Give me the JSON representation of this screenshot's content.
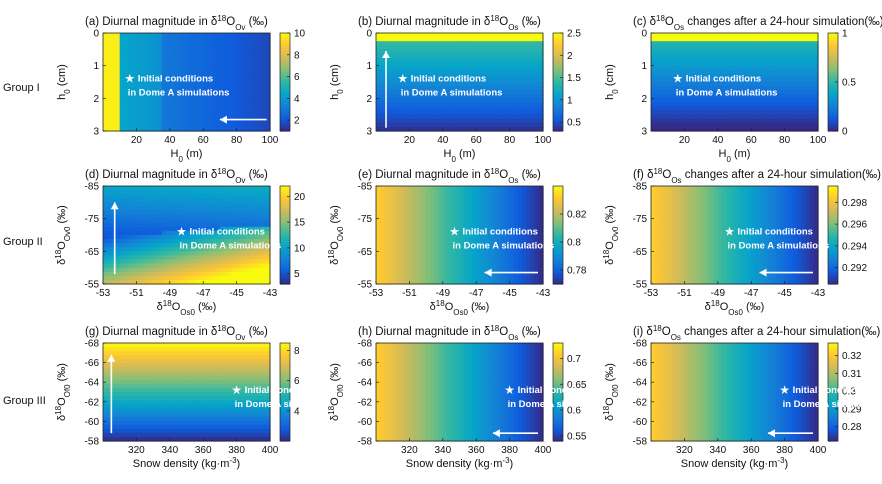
{
  "groups": [
    {
      "label": "Group I"
    },
    {
      "label": "Group II"
    },
    {
      "label": "Group III"
    }
  ],
  "annotation": {
    "line1": "Initial conditions",
    "line2": "in Dome A simulations"
  },
  "colors": {
    "parula": [
      "#352a87",
      "#0f5cdd",
      "#1481d6",
      "#06a4ca",
      "#2eb7a4",
      "#87bf77",
      "#d1bb59",
      "#fec832",
      "#f9fb0e"
    ],
    "arrow": "#ffffff",
    "star": "#ffffff"
  },
  "chart_data": [
    {
      "id": "a",
      "type": "heatmap",
      "title": "(a) Diurnal magnitude in δ18Ov (‰)",
      "xlabel": "H0 (m)",
      "ylabel": "h0 (cm)",
      "xlim": [
        0,
        100
      ],
      "ylim": [
        0,
        3
      ],
      "y_reversed": true,
      "xticks": [
        "20",
        "40",
        "60",
        "80",
        "100"
      ],
      "yticks": [
        "0",
        "1",
        "2",
        "3"
      ],
      "colorbar": {
        "range": [
          1,
          10
        ],
        "ticks": [
          "10",
          "8",
          "6",
          "4",
          "2"
        ]
      },
      "field": "a",
      "star": {
        "x": 16,
        "y": 1.4
      },
      "arrow": {
        "dir": "left",
        "from": [
          98,
          2.65
        ],
        "to": [
          70,
          2.65
        ]
      },
      "annotation": true
    },
    {
      "id": "b",
      "type": "heatmap",
      "title": "(b) Diurnal magnitude in δ18Os (‰)",
      "xlabel": "H0 (m)",
      "ylabel": "h0 (cm)",
      "xlim": [
        0,
        100
      ],
      "ylim": [
        0,
        3
      ],
      "y_reversed": true,
      "xticks": [
        "20",
        "40",
        "60",
        "80",
        "100"
      ],
      "yticks": [
        "0",
        "1",
        "2",
        "3"
      ],
      "colorbar": {
        "range": [
          0.3,
          2.5
        ],
        "ticks": [
          "2.5",
          "2",
          "1.5",
          "1",
          "0.5"
        ]
      },
      "field": "b",
      "star": {
        "x": 16,
        "y": 1.4
      },
      "arrow": {
        "dir": "up",
        "from": [
          6,
          2.9
        ],
        "to": [
          6,
          0.55
        ]
      },
      "annotation": true
    },
    {
      "id": "c",
      "type": "heatmap",
      "title": "(c) δ18Os changes after a 24-hour simulation(‰)",
      "xlabel": "H0 (m)",
      "ylabel": "h0 (cm)",
      "xlim": [
        0,
        100
      ],
      "ylim": [
        0,
        3
      ],
      "y_reversed": true,
      "xticks": [
        "20",
        "40",
        "60",
        "80",
        "100"
      ],
      "yticks": [
        "0",
        "1",
        "2",
        "3"
      ],
      "colorbar": {
        "range": [
          0,
          1
        ],
        "ticks": [
          "1",
          "0.5",
          "0"
        ]
      },
      "field": "c",
      "star": {
        "x": 16,
        "y": 1.4
      },
      "annotation": true
    },
    {
      "id": "d",
      "type": "heatmap",
      "title": "(d) Diurnal magnitude in δ18Ov (‰)",
      "xlabel": "δ18Os0 (‰)",
      "ylabel": "δ18Ov0 (‰)",
      "xlim": [
        -53,
        -43
      ],
      "ylim": [
        -85,
        -55
      ],
      "y_reversed": true,
      "xticks": [
        "-53",
        "-51",
        "-49",
        "-47",
        "-45",
        "-43"
      ],
      "yticks": [
        "-85",
        "-75",
        "-65",
        "-55"
      ],
      "colorbar": {
        "range": [
          3,
          22
        ],
        "ticks": [
          "20",
          "15",
          "10",
          "5"
        ]
      },
      "field": "d",
      "star": {
        "x": -48.3,
        "y": -71
      },
      "arrow": {
        "dir": "up",
        "from": [
          -52.3,
          -58
        ],
        "to": [
          -52.3,
          -80
        ]
      },
      "annotation": true
    },
    {
      "id": "e",
      "type": "heatmap",
      "title": "(e) Diurnal magnitude in δ18Os (‰)",
      "xlabel": "δ18Os0 (‰)",
      "ylabel": "δ18Ov0 (‰)",
      "xlim": [
        -53,
        -43
      ],
      "ylim": [
        -85,
        -55
      ],
      "y_reversed": true,
      "xticks": [
        "-53",
        "-51",
        "-49",
        "-47",
        "-45",
        "-43"
      ],
      "yticks": [
        "-85",
        "-75",
        "-65",
        "-55"
      ],
      "colorbar": {
        "range": [
          0.77,
          0.84
        ],
        "ticks": [
          "0.82",
          "0.8",
          "0.78"
        ]
      },
      "field": "horiz",
      "star": {
        "x": -48.3,
        "y": -71
      },
      "arrow": {
        "dir": "left",
        "from": [
          -43.3,
          -58.5
        ],
        "to": [
          -46.5,
          -58.5
        ]
      },
      "annotation": true
    },
    {
      "id": "f",
      "type": "heatmap",
      "title": "(f) δ18Os changes after a 24-hour simulation(‰)",
      "xlabel": "δ18Os0 (‰)",
      "ylabel": "δ18Ov0 (‰)",
      "xlim": [
        -53,
        -43
      ],
      "ylim": [
        -85,
        -55
      ],
      "y_reversed": true,
      "xticks": [
        "-53",
        "-51",
        "-49",
        "-47",
        "-45",
        "-43"
      ],
      "yticks": [
        "-85",
        "-75",
        "-65",
        "-55"
      ],
      "colorbar": {
        "range": [
          0.2905,
          0.2995
        ],
        "ticks": [
          "0.298",
          "0.296",
          "0.294",
          "0.292"
        ]
      },
      "field": "horiz",
      "star": {
        "x": -48.3,
        "y": -71
      },
      "arrow": {
        "dir": "left",
        "from": [
          -43.3,
          -58.5
        ],
        "to": [
          -46.5,
          -58.5
        ]
      },
      "annotation": true
    },
    {
      "id": "g",
      "type": "heatmap",
      "title": "(g) Diurnal magnitude in δ18Ov (‰)",
      "xlabel": "Snow density (kg·m-3)",
      "ylabel": "δ18Of0 (‰)",
      "xlim": [
        300,
        400
      ],
      "ylim": [
        -68,
        -58
      ],
      "y_reversed": true,
      "xticks": [
        "320",
        "340",
        "360",
        "380",
        "400"
      ],
      "yticks": [
        "-68",
        "-66",
        "-64",
        "-62",
        "-60",
        "-58"
      ],
      "colorbar": {
        "range": [
          2,
          8.5
        ],
        "ticks": [
          "8",
          "6",
          "4"
        ]
      },
      "field": "g",
      "star": {
        "x": 380,
        "y": -63.2
      },
      "arrow": {
        "dir": "up",
        "from": [
          305,
          -58.8
        ],
        "to": [
          305,
          -66.8
        ]
      },
      "annotation": true
    },
    {
      "id": "h",
      "type": "heatmap",
      "title": "(h) Diurnal magnitude in δ18Os (‰)",
      "xlabel": "Snow density (kg·m-3)",
      "ylabel": "δ18Of0 (‰)",
      "xlim": [
        300,
        400
      ],
      "ylim": [
        -68,
        -58
      ],
      "y_reversed": true,
      "xticks": [
        "320",
        "340",
        "360",
        "380",
        "400"
      ],
      "yticks": [
        "-68",
        "-66",
        "-64",
        "-62",
        "-60",
        "-58"
      ],
      "colorbar": {
        "range": [
          0.54,
          0.73
        ],
        "ticks": [
          "0.7",
          "0.65",
          "0.6",
          "0.55"
        ]
      },
      "field": "horiz",
      "star": {
        "x": 380,
        "y": -63.2
      },
      "arrow": {
        "dir": "left",
        "from": [
          397,
          -58.8
        ],
        "to": [
          370,
          -58.8
        ]
      },
      "annotation": true
    },
    {
      "id": "i",
      "type": "heatmap",
      "title": "(i) δ18Os changes after a 24-hour simulation(‰)",
      "xlabel": "Snow density (kg·m-3)",
      "ylabel": "δ18Of0 (‰)",
      "xlim": [
        300,
        400
      ],
      "ylim": [
        -68,
        -58
      ],
      "y_reversed": true,
      "xticks": [
        "320",
        "340",
        "360",
        "380",
        "400"
      ],
      "yticks": [
        "-68",
        "-66",
        "-64",
        "-62",
        "-60",
        "-58"
      ],
      "colorbar": {
        "range": [
          0.272,
          0.327
        ],
        "ticks": [
          "0.32",
          "0.31",
          "0.3",
          "0.29",
          "0.28"
        ]
      },
      "field": "horiz",
      "star": {
        "x": 380,
        "y": -63.2
      },
      "arrow": {
        "dir": "left",
        "from": [
          397,
          -58.8
        ],
        "to": [
          370,
          -58.8
        ]
      },
      "annotation": true
    }
  ]
}
